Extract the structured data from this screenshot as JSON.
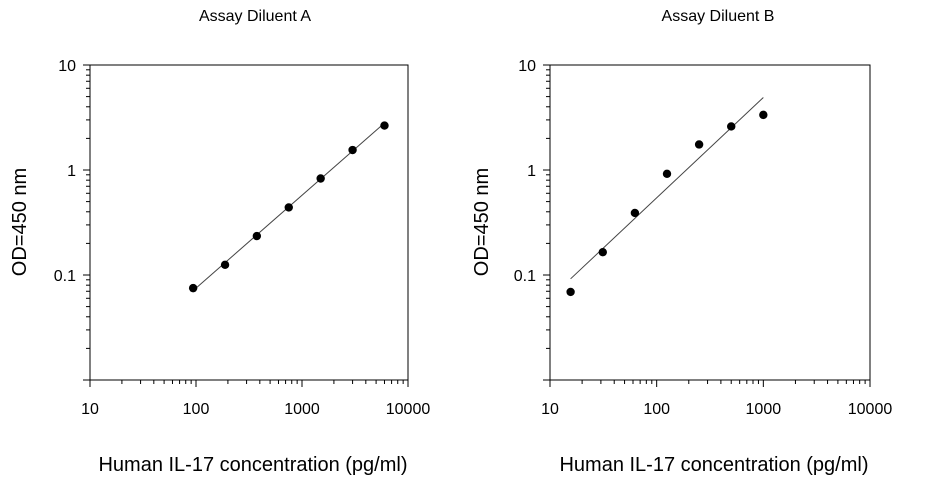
{
  "chart_data": [
    {
      "type": "scatter",
      "title": "Assay Diluent A",
      "xlabel": "Human IL-17 concentration (pg/ml)",
      "ylabel": "OD=450 nm",
      "xscale": "log",
      "yscale": "log",
      "xlim": [
        10,
        10000
      ],
      "ylim": [
        0.01,
        10
      ],
      "xticks": [
        "10",
        "100",
        "1000",
        "10000"
      ],
      "yticks": [
        "0.1",
        "1",
        "10"
      ],
      "grid": false,
      "legend": "none",
      "points": [
        {
          "x": 94,
          "y": 0.075
        },
        {
          "x": 188,
          "y": 0.125
        },
        {
          "x": 375,
          "y": 0.235
        },
        {
          "x": 750,
          "y": 0.44
        },
        {
          "x": 1500,
          "y": 0.83
        },
        {
          "x": 3000,
          "y": 1.55
        },
        {
          "x": 6000,
          "y": 2.65
        }
      ],
      "fit_line": {
        "x": [
          94,
          6000
        ],
        "y": [
          0.071,
          2.8
        ]
      }
    },
    {
      "type": "scatter",
      "title": "Assay Diluent B",
      "xlabel": "Human IL-17 concentration (pg/ml)",
      "ylabel": "OD=450 nm",
      "xscale": "log",
      "yscale": "log",
      "xlim": [
        10,
        10000
      ],
      "ylim": [
        0.01,
        10
      ],
      "xticks": [
        "10",
        "100",
        "1000",
        "10000"
      ],
      "yticks": [
        "0.1",
        "1",
        "10"
      ],
      "grid": false,
      "legend": "none",
      "points": [
        {
          "x": 15.6,
          "y": 0.069
        },
        {
          "x": 31.25,
          "y": 0.165
        },
        {
          "x": 62.5,
          "y": 0.39
        },
        {
          "x": 125,
          "y": 0.92
        },
        {
          "x": 250,
          "y": 1.75
        },
        {
          "x": 500,
          "y": 2.6
        },
        {
          "x": 1000,
          "y": 3.35
        }
      ],
      "fit_line": {
        "x": [
          15.6,
          1000
        ],
        "y": [
          0.092,
          4.9
        ]
      }
    }
  ]
}
